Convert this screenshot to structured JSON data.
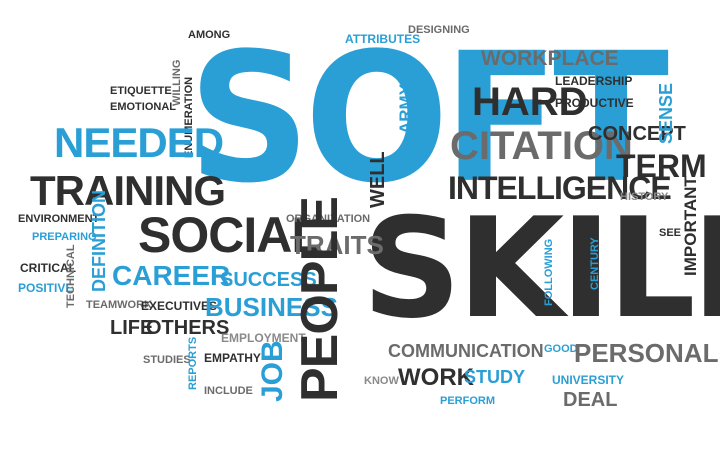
{
  "words": {
    "soft": "SOFT",
    "skills": "SKILLS",
    "needed": "NEEDED",
    "training": "TRAINING",
    "social": "SOCIAL",
    "career": "CAREER",
    "success": "SUCCESS",
    "business": "BUSINESS",
    "people": "PEOPLE",
    "job": "JOB",
    "hard": "HARD",
    "citation": "CITATION",
    "intelligence": "INTELLIGENCE",
    "term": "TERM",
    "concept": "CONCEPT",
    "sense": "SENSE",
    "workplace": "WORKPLACE",
    "leadership": "LEADERSHIP",
    "productive": "PRODUCTIVE",
    "attributes": "ATTRIBUTES",
    "designing": "DESIGNING",
    "among": "AMONG",
    "etiquette": "ETIQUETTE",
    "emotional": "EMOTIONAL",
    "willing": "WILLING",
    "enumeration": "ENUMERATION",
    "environment": "ENVIRONMENT",
    "preparing": "PREPARING",
    "definition": "DEFINITION",
    "critical": "CRITICAL",
    "positive": "POSITIVE",
    "technical": "TECHNICAL",
    "teamwork": "TEAMWORK",
    "executives": "EXECUTIVES",
    "life": "LIFE",
    "others": "OTHERS",
    "employment": "EMPLOYMENT",
    "studies": "STUDIES",
    "empathy": "EMPATHY",
    "reports": "REPORTS",
    "include": "INCLUDE",
    "organization": "ORGANIZATION",
    "traits": "TRAITS",
    "well": "WELL",
    "army": "ARMY",
    "communication": "COMMUNICATION",
    "know": "KNOW",
    "work": "WORK",
    "study": "STUDY",
    "perform": "PERFORM",
    "good": "GOOD",
    "personal": "PERSONAL",
    "university": "UNIVERSITY",
    "deal": "DEAL",
    "following": "FOLLOWING",
    "century": "CENTURY",
    "history": "HISTORY",
    "see": "SEE",
    "important": "IMPORTANT"
  },
  "colors": {
    "dark": "#2f2f2f",
    "blue": "#2a9fd6",
    "gray": "#6b6b6b",
    "light_gray": "#8a8a8a"
  }
}
